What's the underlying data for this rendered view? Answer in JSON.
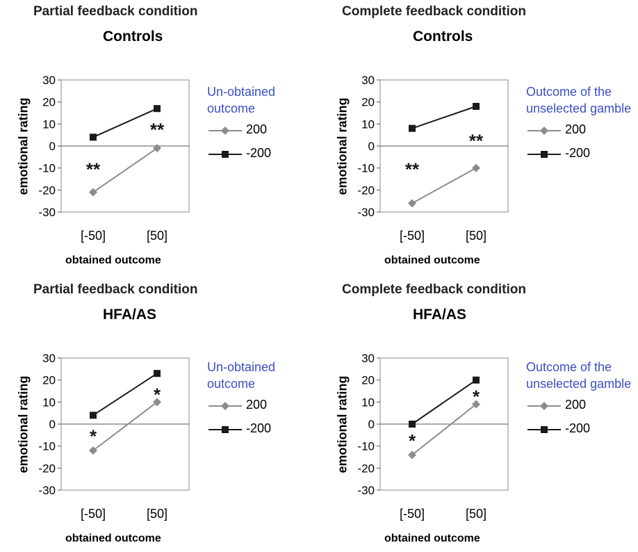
{
  "chart_data": [
    {
      "type": "line",
      "condition_title": "Partial feedback condition",
      "group_title": "Controls",
      "ylabel": "emotional rating",
      "xlabel": "obtained outcome",
      "categories": [
        "[-50]",
        "[50]"
      ],
      "ylim": [
        -30,
        30
      ],
      "yticks": [
        30,
        20,
        10,
        0,
        -10,
        -20,
        -30
      ],
      "legend_title": "Un-obtained outcome",
      "series": [
        {
          "name": "200",
          "values": [
            -21,
            -1
          ],
          "color": "#8c8c8c",
          "marker": "diamond"
        },
        {
          "name": "-200",
          "values": [
            4,
            17
          ],
          "color": "#1a1a1a",
          "marker": "square"
        }
      ],
      "annotations": [
        {
          "text": "**",
          "x": "[-50]",
          "y": -9
        },
        {
          "text": "**",
          "x": "[50]",
          "y": 9
        }
      ]
    },
    {
      "type": "line",
      "condition_title": "Complete feedback condition",
      "group_title": "Controls",
      "ylabel": "emotional rating",
      "xlabel": "obtained outcome",
      "categories": [
        "[-50]",
        "[50]"
      ],
      "ylim": [
        -30,
        30
      ],
      "yticks": [
        30,
        20,
        10,
        0,
        -10,
        -20,
        -30
      ],
      "legend_title": "Outcome of the unselected gamble",
      "series": [
        {
          "name": "200",
          "values": [
            -26,
            -10
          ],
          "color": "#8c8c8c",
          "marker": "diamond"
        },
        {
          "name": "-200",
          "values": [
            8,
            18
          ],
          "color": "#1a1a1a",
          "marker": "square"
        }
      ],
      "annotations": [
        {
          "text": "**",
          "x": "[-50]",
          "y": -9
        },
        {
          "text": "**",
          "x": "[50]",
          "y": 4
        }
      ]
    },
    {
      "type": "line",
      "condition_title": "Partial feedback condition",
      "group_title": "HFA/AS",
      "ylabel": "emotional rating",
      "xlabel": "obtained outcome",
      "categories": [
        "[-50]",
        "[50]"
      ],
      "ylim": [
        -30,
        30
      ],
      "yticks": [
        30,
        20,
        10,
        0,
        -10,
        -20,
        -30
      ],
      "legend_title": "Un-obtained outcome",
      "series": [
        {
          "name": "200",
          "values": [
            -12,
            10
          ],
          "color": "#8c8c8c",
          "marker": "diamond"
        },
        {
          "name": "-200",
          "values": [
            4,
            23
          ],
          "color": "#1a1a1a",
          "marker": "square"
        }
      ],
      "annotations": [
        {
          "text": "*",
          "x": "[-50]",
          "y": -4
        },
        {
          "text": "*",
          "x": "[50]",
          "y": 15
        }
      ]
    },
    {
      "type": "line",
      "condition_title": "Complete feedback condition",
      "group_title": "HFA/AS",
      "ylabel": "emotional rating",
      "xlabel": "obtained outcome",
      "categories": [
        "[-50]",
        "[50]"
      ],
      "ylim": [
        -30,
        30
      ],
      "yticks": [
        30,
        20,
        10,
        0,
        -10,
        -20,
        -30
      ],
      "legend_title": "Outcome of the unselected gamble",
      "series": [
        {
          "name": "200",
          "values": [
            -14,
            9
          ],
          "color": "#8c8c8c",
          "marker": "diamond"
        },
        {
          "name": "-200",
          "values": [
            0,
            20
          ],
          "color": "#1a1a1a",
          "marker": "square"
        }
      ],
      "annotations": [
        {
          "text": "*",
          "x": "[-50]",
          "y": -6
        },
        {
          "text": "*",
          "x": "[50]",
          "y": 14
        }
      ]
    }
  ]
}
